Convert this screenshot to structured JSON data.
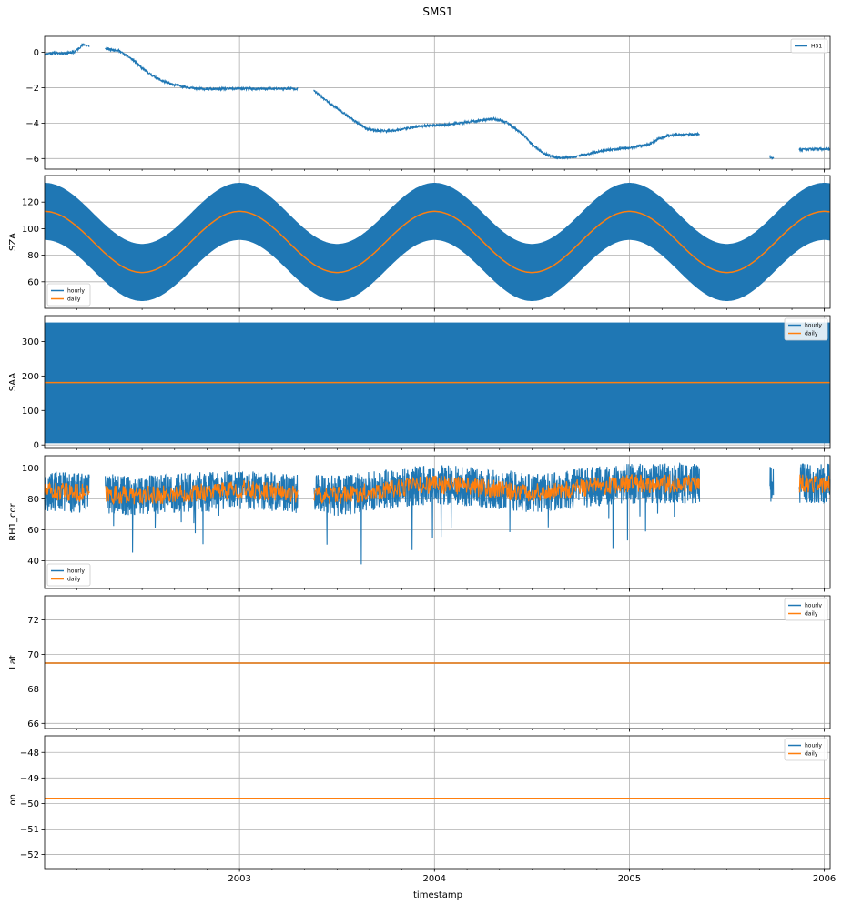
{
  "figure": {
    "title": "SMS1",
    "xlabel": "timestamp"
  },
  "colors": {
    "hourly": "#1f77b4",
    "daily": "#ff7f0e",
    "grid": "#b0b0b0"
  },
  "chart_data": [
    {
      "type": "line",
      "ylabel": "",
      "ylim": [
        -6.6,
        0.9
      ],
      "yticks": [
        0,
        -2,
        -4,
        -6
      ],
      "legend_position": "top-right",
      "series": [
        {
          "name": "HS1",
          "style": "signal",
          "gaps": [
            [
              2002.23,
              2002.31
            ],
            [
              2003.3,
              2003.38
            ],
            [
              2005.36,
              2005.72
            ],
            [
              2005.74,
              2005.87
            ]
          ],
          "points": [
            [
              2002.0,
              -0.1
            ],
            [
              2002.03,
              -0.05
            ],
            [
              2002.1,
              -0.05
            ],
            [
              2002.15,
              0.0
            ],
            [
              2002.2,
              0.45
            ],
            [
              2002.23,
              0.35
            ],
            [
              2002.31,
              0.2
            ],
            [
              2002.38,
              0.1
            ],
            [
              2002.45,
              -0.4
            ],
            [
              2002.5,
              -0.9
            ],
            [
              2002.55,
              -1.3
            ],
            [
              2002.6,
              -1.6
            ],
            [
              2002.65,
              -1.8
            ],
            [
              2002.7,
              -1.9
            ],
            [
              2002.77,
              -2.05
            ],
            [
              2002.85,
              -2.08
            ],
            [
              2003.0,
              -2.05
            ],
            [
              2003.1,
              -2.07
            ],
            [
              2003.3,
              -2.05
            ],
            [
              2003.38,
              -2.15
            ],
            [
              2003.43,
              -2.6
            ],
            [
              2003.48,
              -3.0
            ],
            [
              2003.53,
              -3.4
            ],
            [
              2003.58,
              -3.8
            ],
            [
              2003.65,
              -4.3
            ],
            [
              2003.72,
              -4.45
            ],
            [
              2003.8,
              -4.4
            ],
            [
              2003.88,
              -4.25
            ],
            [
              2003.95,
              -4.15
            ],
            [
              2004.05,
              -4.1
            ],
            [
              2004.2,
              -3.9
            ],
            [
              2004.3,
              -3.75
            ],
            [
              2004.37,
              -3.95
            ],
            [
              2004.45,
              -4.6
            ],
            [
              2004.5,
              -5.2
            ],
            [
              2004.56,
              -5.7
            ],
            [
              2004.62,
              -5.95
            ],
            [
              2004.7,
              -5.95
            ],
            [
              2004.8,
              -5.7
            ],
            [
              2004.9,
              -5.5
            ],
            [
              2005.0,
              -5.4
            ],
            [
              2005.1,
              -5.2
            ],
            [
              2005.15,
              -4.9
            ],
            [
              2005.2,
              -4.7
            ],
            [
              2005.36,
              -4.6
            ],
            [
              2005.72,
              -5.9
            ],
            [
              2005.74,
              -6.0
            ],
            [
              2005.87,
              -5.5
            ],
            [
              2006.03,
              -5.45
            ]
          ]
        }
      ]
    },
    {
      "type": "line",
      "ylabel": "SZA",
      "ylim": [
        40,
        140
      ],
      "yticks": [
        60,
        80,
        100,
        120
      ],
      "legend_position": "bottom-left",
      "series": [
        {
          "name": "hourly",
          "style": "band",
          "daily_mean": {
            "offset": 90,
            "amp": 23
          },
          "half_width": 21.5
        },
        {
          "name": "daily",
          "style": "sine",
          "daily_mean": {
            "offset": 90,
            "amp": 23
          }
        }
      ]
    },
    {
      "type": "line",
      "ylabel": "SAA",
      "ylim": [
        -10,
        375
      ],
      "yticks": [
        0,
        100,
        200,
        300
      ],
      "legend_position": "top-right",
      "series": [
        {
          "name": "hourly",
          "style": "rect",
          "range": [
            5,
            355
          ]
        },
        {
          "name": "daily",
          "style": "const",
          "value": 181
        }
      ]
    },
    {
      "type": "line",
      "ylabel": "RH1_cor",
      "ylim": [
        22,
        108
      ],
      "yticks": [
        40,
        60,
        80,
        100
      ],
      "legend_position": "bottom-left",
      "series": [
        {
          "name": "hourly",
          "style": "noise",
          "amp": 13,
          "gaps": [
            [
              2002.23,
              2002.31
            ],
            [
              2003.3,
              2003.38
            ],
            [
              2005.36,
              2005.72
            ],
            [
              2005.74,
              2005.87
            ]
          ],
          "mean": [
            [
              2002.0,
              85
            ],
            [
              2002.5,
              82
            ],
            [
              2003.0,
              86
            ],
            [
              2003.5,
              82
            ],
            [
              2004.0,
              90
            ],
            [
              2004.5,
              84
            ],
            [
              2005.0,
              90
            ],
            [
              2006.03,
              90
            ]
          ]
        },
        {
          "name": "daily",
          "style": "noise",
          "amp": 6,
          "gaps": [
            [
              2002.23,
              2002.31
            ],
            [
              2003.3,
              2003.38
            ],
            [
              2005.36,
              2005.87
            ]
          ],
          "mean": [
            [
              2002.0,
              85
            ],
            [
              2002.5,
              82
            ],
            [
              2003.0,
              86
            ],
            [
              2003.5,
              82
            ],
            [
              2004.0,
              90
            ],
            [
              2004.5,
              84
            ],
            [
              2005.0,
              90
            ],
            [
              2006.03,
              90
            ]
          ]
        }
      ]
    },
    {
      "type": "line",
      "ylabel": "Lat",
      "ylim": [
        65.7,
        73.4
      ],
      "yticks": [
        66,
        68,
        70,
        72
      ],
      "legend_position": "top-right",
      "series": [
        {
          "name": "hourly",
          "style": "const",
          "value": 69.5
        },
        {
          "name": "daily",
          "style": "const",
          "value": 69.5
        }
      ]
    },
    {
      "type": "line",
      "ylabel": "Lon",
      "ylim": [
        -52.55,
        -47.35
      ],
      "yticks": [
        -48,
        -49,
        -50,
        -51,
        -52
      ],
      "legend_position": "top-right",
      "series": [
        {
          "name": "hourly",
          "style": "const",
          "value": -49.8
        },
        {
          "name": "daily",
          "style": "const",
          "value": -49.8
        }
      ]
    }
  ],
  "x_axis": {
    "range": [
      2002.0,
      2006.03
    ],
    "major_ticks": [
      2003,
      2004,
      2005,
      2006
    ],
    "major_labels": [
      "2003",
      "2004",
      "2005",
      "2006"
    ],
    "minor_step": 0.1667
  }
}
